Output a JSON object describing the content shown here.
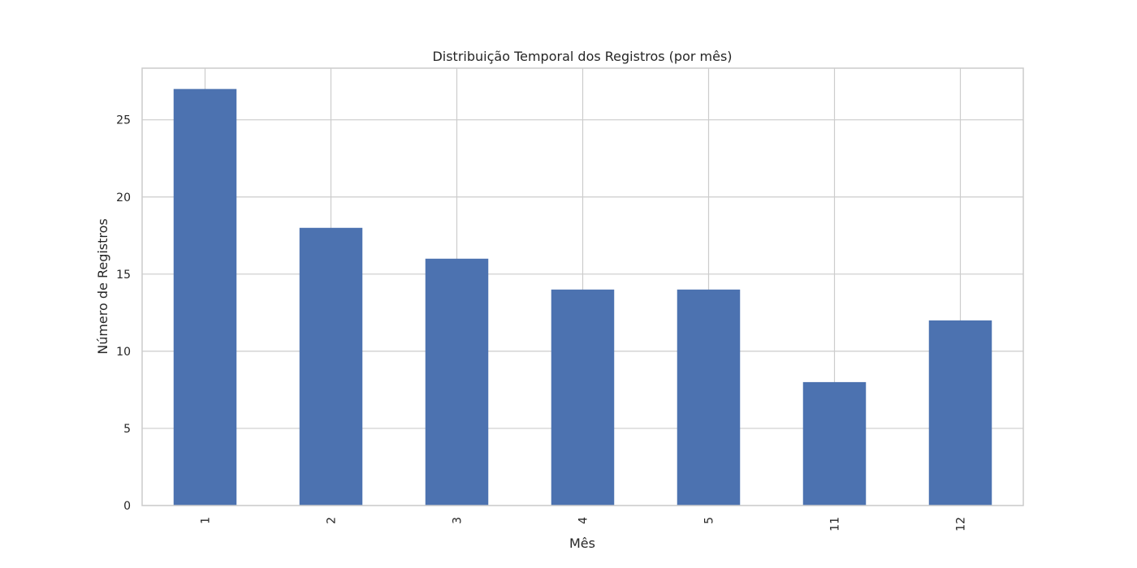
{
  "chart_data": {
    "type": "bar",
    "title": "Distribuição Temporal dos Registros (por mês)",
    "xlabel": "Mês",
    "ylabel": "Número de Registros",
    "categories": [
      "1",
      "2",
      "3",
      "4",
      "5",
      "11",
      "12"
    ],
    "values": [
      27,
      18,
      16,
      14,
      14,
      8,
      12
    ],
    "ylim": [
      0,
      28.35
    ],
    "yticks": [
      0,
      5,
      10,
      15,
      20,
      25
    ],
    "x_tick_rotation": "vertical",
    "grid": true,
    "legend": "none",
    "bar_color": "#4c72b0",
    "grid_color": "#cccccc"
  }
}
